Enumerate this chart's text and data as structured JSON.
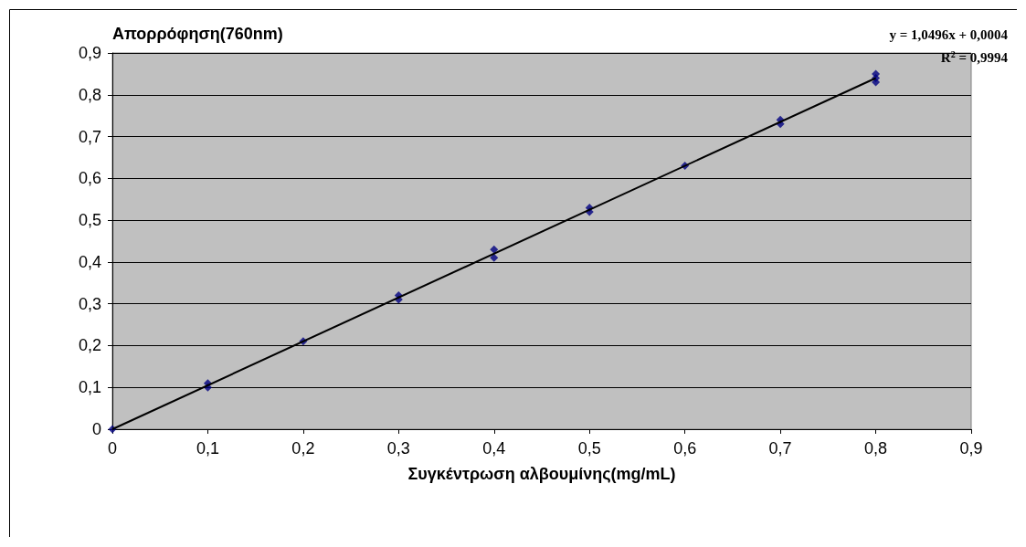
{
  "chart_data": {
    "type": "scatter",
    "xlabel": "Συγκέντρωση αλβουμίνης(mg/mL)",
    "ylabel": "Απορρόφηση(760nm)",
    "xlim": [
      0,
      0.9
    ],
    "ylim": [
      0,
      0.9
    ],
    "xticks": [
      0,
      {
        "value": 0.1,
        "label": "0,1"
      },
      {
        "value": 0.2,
        "label": "0,2"
      },
      {
        "value": 0.3,
        "label": "0,3"
      },
      {
        "value": 0.4,
        "label": "0,4"
      },
      {
        "value": 0.5,
        "label": "0,5"
      },
      {
        "value": 0.6,
        "label": "0,6"
      },
      {
        "value": 0.7,
        "label": "0,7"
      },
      {
        "value": 0.8,
        "label": "0,8"
      },
      {
        "value": 0.9,
        "label": "0,9"
      }
    ],
    "yticks": [
      0,
      {
        "value": 0.1,
        "label": "0,1"
      },
      {
        "value": 0.2,
        "label": "0,2"
      },
      {
        "value": 0.3,
        "label": "0,3"
      },
      {
        "value": 0.4,
        "label": "0,4"
      },
      {
        "value": 0.5,
        "label": "0,5"
      },
      {
        "value": 0.6,
        "label": "0,6"
      },
      {
        "value": 0.7,
        "label": "0,7"
      },
      {
        "value": 0.8,
        "label": "0,8"
      },
      {
        "value": 0.9,
        "label": "0,9"
      }
    ],
    "grid": "y",
    "marker": "diamond",
    "series": [
      {
        "color": "#000080",
        "x": [
          0,
          0.1,
          0.1,
          0.2,
          0.3,
          0.3,
          0.4,
          0.4,
          0.5,
          0.5,
          0.6,
          0.7,
          0.7,
          0.8,
          0.8,
          0.8
        ],
        "values": [
          0,
          0.11,
          0.1,
          0.21,
          0.32,
          0.31,
          0.43,
          0.41,
          0.53,
          0.52,
          0.63,
          0.74,
          0.73,
          0.85,
          0.84,
          0.83
        ]
      },
      {
        "type": "line",
        "color": "#000000",
        "x": [
          0,
          0.8
        ],
        "values": [
          0,
          0.84
        ],
        "marker": "none"
      }
    ],
    "annotations": [
      "y = 1,0496x + 0,0004",
      "R$^{2}$ = 0,9994"
    ]
  }
}
